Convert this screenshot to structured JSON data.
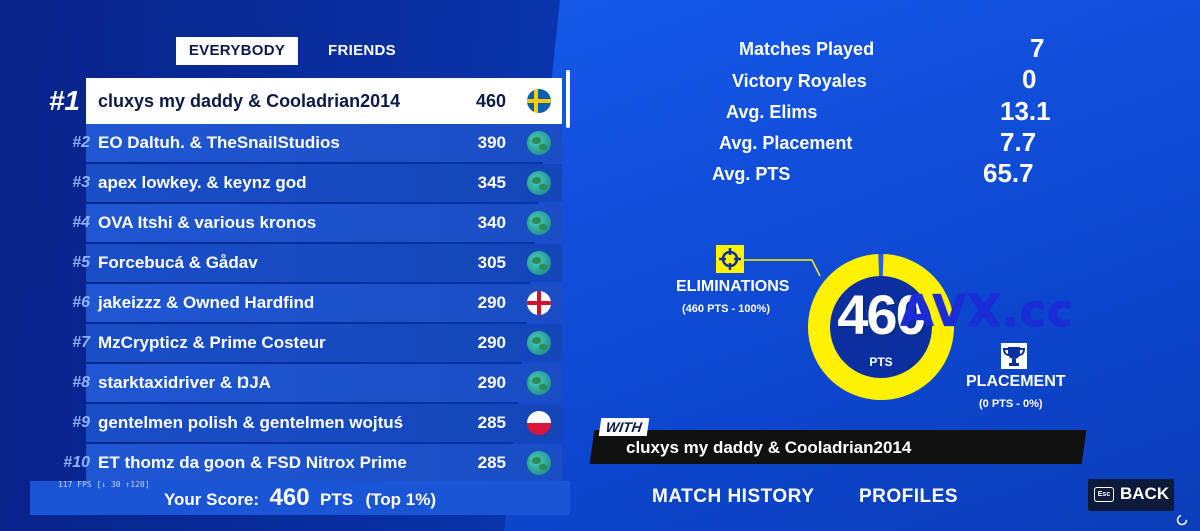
{
  "tabs": {
    "everybody": "EVERYBODY",
    "friends": "FRIENDS"
  },
  "leaderboard": [
    {
      "rank": "#1",
      "name": "cluxys my daddy & Cooladrian2014",
      "score": "460",
      "flag": "sweden"
    },
    {
      "rank": "#2",
      "name": "EO Daltuh. & TheSnailStudios",
      "score": "390",
      "flag": "globe"
    },
    {
      "rank": "#3",
      "name": "apex lowkey. & keynz god",
      "score": "345",
      "flag": "globe"
    },
    {
      "rank": "#4",
      "name": "OVA Itshi & various kronos",
      "score": "340",
      "flag": "globe"
    },
    {
      "rank": "#5",
      "name": "Forcebucá & Gådav",
      "score": "305",
      "flag": "globe"
    },
    {
      "rank": "#6",
      "name": "jakeizzz & Owned Hardfind",
      "score": "290",
      "flag": "england"
    },
    {
      "rank": "#7",
      "name": "MzCrypticz & Prime Costeur",
      "score": "290",
      "flag": "globe"
    },
    {
      "rank": "#8",
      "name": "starktaxidriver & ŊJA",
      "score": "290",
      "flag": "globe"
    },
    {
      "rank": "#9",
      "name": "gentelmen polish & gentelmen wojtuś",
      "score": "285",
      "flag": "poland"
    },
    {
      "rank": "#10",
      "name": "ET thomz da goon & FSD Nitrox Prime",
      "score": "285",
      "flag": "globe"
    }
  ],
  "footer": {
    "fps": "117 FPS [↓ 30 ↑120]",
    "your_score_label": "Your Score:",
    "your_score_value": "460",
    "your_score_unit": "PTS",
    "your_score_top": "(Top 1%)"
  },
  "stats": [
    {
      "label": "Matches Played",
      "value": "7"
    },
    {
      "label": "Victory Royales",
      "value": "0"
    },
    {
      "label": "Avg. Elims",
      "value": "13.1"
    },
    {
      "label": "Avg. Placement",
      "value": "7.7"
    },
    {
      "label": "Avg. PTS",
      "value": "65.7"
    }
  ],
  "breakdown": {
    "total": "460",
    "unit": "PTS",
    "eliminations_fraction": 1.0,
    "eliminations_title": "ELIMINATIONS",
    "eliminations_sub": "(460 PTS - 100%)",
    "placement_title": "PLACEMENT",
    "placement_sub": "(0 PTS - 0%)"
  },
  "watermark": "AVX.cc",
  "with": {
    "label": "WITH",
    "name": "cluxys my daddy & Cooladrian2014"
  },
  "nav": {
    "match_history": "MATCH HISTORY",
    "profiles": "PROFILES"
  },
  "back": {
    "key": "Esc",
    "label": "BACK"
  },
  "colors": {
    "accent_yellow": "#fff200",
    "background_blue": "#0a3bb8",
    "row_blue": "#1a4ec7"
  }
}
